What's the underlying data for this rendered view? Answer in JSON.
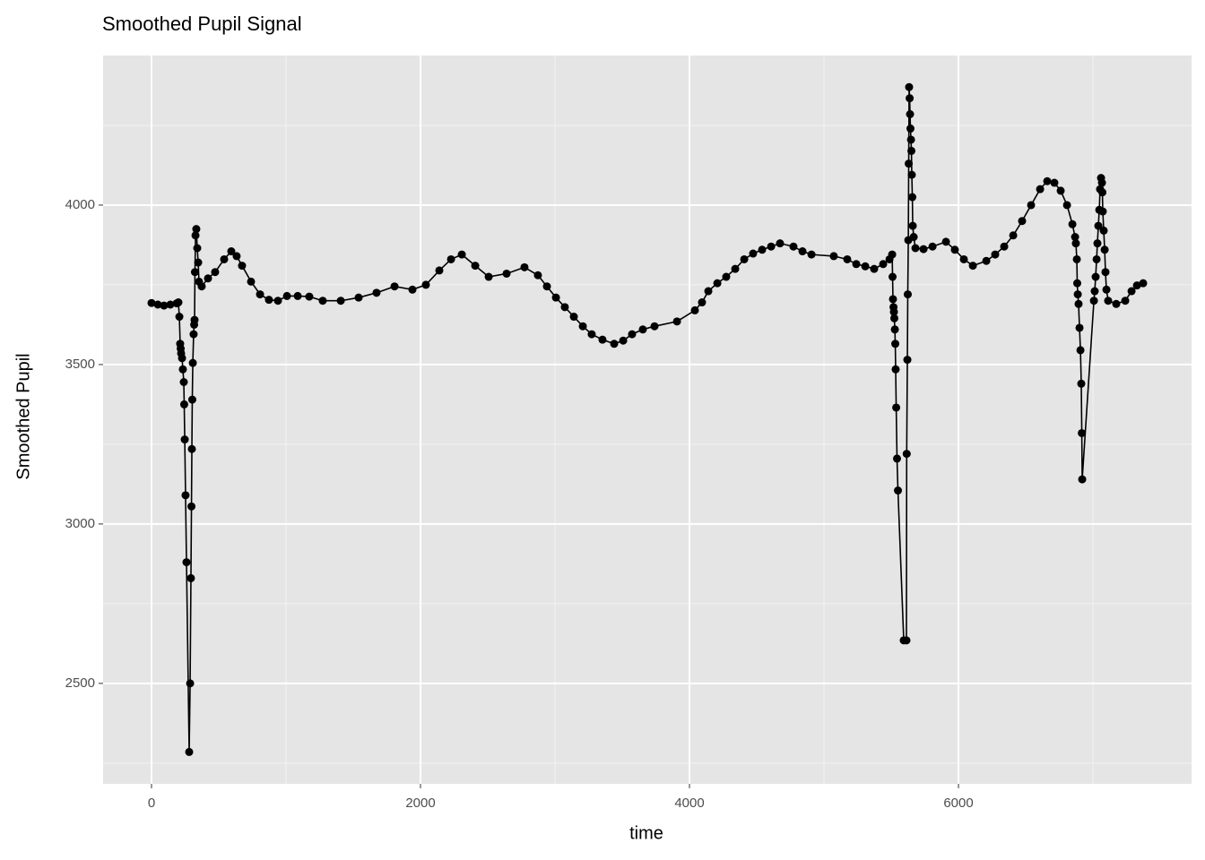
{
  "chart_data": {
    "type": "line",
    "title": "Smoothed Pupil Signal",
    "x_label": "time",
    "y_label": "Smoothed Pupil",
    "xlim": [
      -360,
      7733
    ],
    "ylim": [
      2185,
      4469
    ],
    "xticks": [
      0,
      2000,
      4000,
      6000
    ],
    "yticks": [
      2500,
      3000,
      3500,
      4000
    ],
    "x_minor_grid": [
      1000,
      3000,
      5000,
      7000
    ],
    "y_minor_grid": [
      2250,
      2750,
      3250,
      3750,
      4250
    ],
    "grid": true,
    "markers": true,
    "color": "#000000",
    "panel_color": "#e5e5e5",
    "x": [
      0,
      47,
      93,
      140,
      187,
      200,
      207,
      213,
      217,
      220,
      227,
      233,
      240,
      243,
      247,
      253,
      260,
      280,
      287,
      293,
      297,
      300,
      303,
      307,
      313,
      317,
      320,
      323,
      327,
      333,
      340,
      347,
      353,
      373,
      420,
      473,
      540,
      593,
      633,
      673,
      740,
      807,
      873,
      940,
      1007,
      1087,
      1173,
      1273,
      1407,
      1540,
      1673,
      1807,
      1940,
      2040,
      2140,
      2227,
      2307,
      2407,
      2507,
      2640,
      2773,
      2873,
      2940,
      3007,
      3073,
      3140,
      3207,
      3273,
      3353,
      3440,
      3507,
      3573,
      3653,
      3740,
      3907,
      4040,
      4093,
      4140,
      4207,
      4273,
      4340,
      4407,
      4473,
      4540,
      4607,
      4673,
      4773,
      4840,
      4907,
      5073,
      5173,
      5240,
      5307,
      5373,
      5440,
      5487,
      5507,
      5510,
      5513,
      5517,
      5520,
      5523,
      5527,
      5530,
      5533,
      5537,
      5543,
      5550,
      5593,
      5613,
      5615,
      5620,
      5623,
      5627,
      5630,
      5633,
      5637,
      5640,
      5643,
      5647,
      5650,
      5653,
      5657,
      5660,
      5667,
      5680,
      5740,
      5807,
      5907,
      5973,
      6040,
      6107,
      6207,
      6273,
      6340,
      6407,
      6473,
      6540,
      6607,
      6660,
      6713,
      6760,
      6807,
      6847,
      6867,
      6873,
      6880,
      6883,
      6887,
      6893,
      6900,
      6907,
      6913,
      6917,
      6920,
      7007,
      7013,
      7020,
      7027,
      7033,
      7040,
      7047,
      7053,
      7060,
      7067,
      7070,
      7073,
      7080,
      7087,
      7093,
      7100,
      7113,
      7173,
      7240,
      7287,
      7327,
      7373
    ],
    "values": [
      3693,
      3688,
      3685,
      3688,
      3692,
      3695,
      3650,
      3565,
      3550,
      3535,
      3520,
      3485,
      3445,
      3375,
      3265,
      3090,
      2880,
      2285,
      2500,
      2830,
      3055,
      3235,
      3390,
      3505,
      3595,
      3625,
      3640,
      3790,
      3905,
      3925,
      3865,
      3820,
      3760,
      3745,
      3770,
      3790,
      3830,
      3855,
      3840,
      3810,
      3760,
      3720,
      3703,
      3700,
      3715,
      3715,
      3713,
      3700,
      3700,
      3710,
      3725,
      3745,
      3735,
      3750,
      3795,
      3830,
      3845,
      3810,
      3775,
      3785,
      3805,
      3780,
      3745,
      3710,
      3680,
      3650,
      3620,
      3595,
      3578,
      3565,
      3575,
      3595,
      3610,
      3620,
      3635,
      3670,
      3695,
      3730,
      3755,
      3775,
      3800,
      3830,
      3848,
      3860,
      3870,
      3880,
      3870,
      3855,
      3845,
      3840,
      3830,
      3815,
      3808,
      3800,
      3815,
      3830,
      3845,
      3775,
      3705,
      3680,
      3665,
      3645,
      3610,
      3565,
      3485,
      3365,
      3205,
      3105,
      2635,
      2635,
      3220,
      3515,
      3720,
      3890,
      4130,
      4370,
      4335,
      4285,
      4240,
      4205,
      4170,
      4095,
      4025,
      3935,
      3900,
      3865,
      3862,
      3870,
      3885,
      3860,
      3830,
      3810,
      3825,
      3845,
      3870,
      3905,
      3950,
      4000,
      4050,
      4075,
      4070,
      4045,
      4000,
      3940,
      3900,
      3880,
      3830,
      3755,
      3720,
      3690,
      3615,
      3545,
      3440,
      3285,
      3140,
      3700,
      3730,
      3775,
      3830,
      3880,
      3935,
      3985,
      4050,
      4085,
      4070,
      4040,
      3980,
      3920,
      3860,
      3790,
      3735,
      3700,
      3690,
      3700,
      3730,
      3748,
      3755
    ]
  }
}
